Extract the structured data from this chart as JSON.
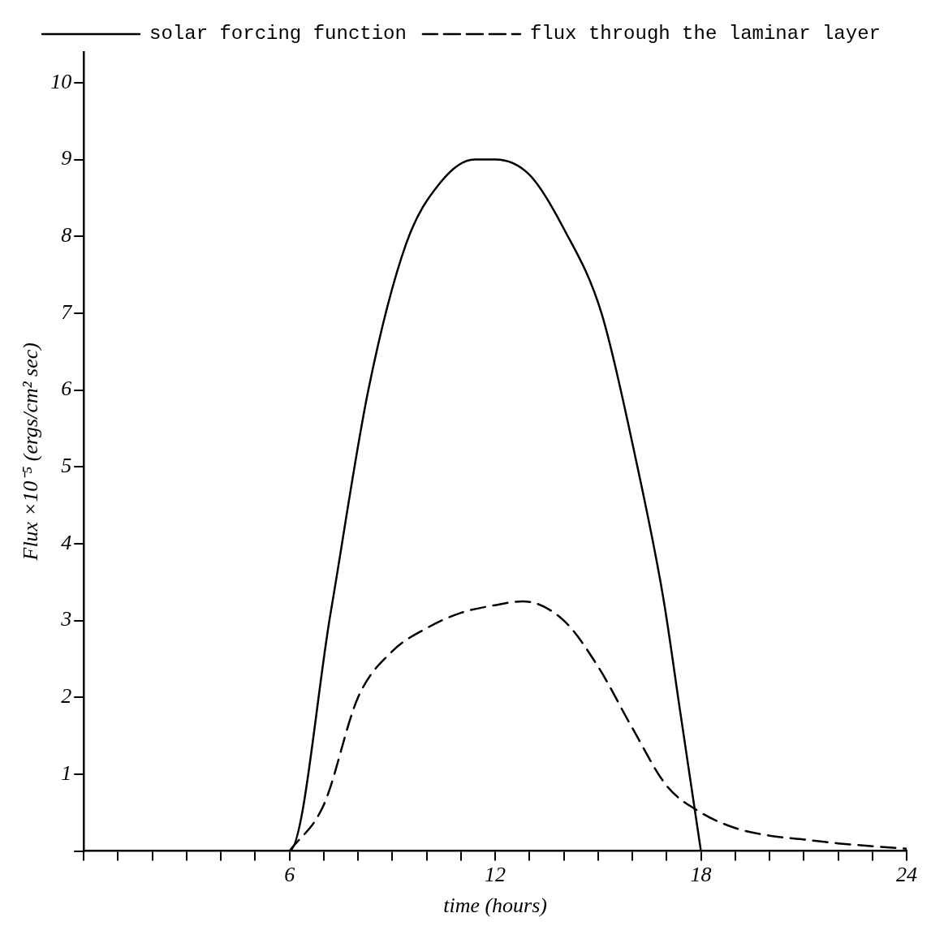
{
  "chart_data": {
    "type": "line",
    "xlabel": "time (hours)",
    "ylabel": "Flux ×10⁻⁵ (ergs/cm² sec)",
    "xlim": [
      0,
      24
    ],
    "ylim": [
      0,
      10.4
    ],
    "xticks": [
      {
        "value": 0,
        "label": null
      },
      {
        "value": 1,
        "label": null
      },
      {
        "value": 2,
        "label": null
      },
      {
        "value": 3,
        "label": null
      },
      {
        "value": 4,
        "label": null
      },
      {
        "value": 5,
        "label": null
      },
      6,
      {
        "value": 7,
        "label": null
      },
      {
        "value": 8,
        "label": null
      },
      {
        "value": 9,
        "label": null
      },
      {
        "value": 10,
        "label": null
      },
      {
        "value": 11,
        "label": null
      },
      12,
      {
        "value": 13,
        "label": null
      },
      {
        "value": 14,
        "label": null
      },
      {
        "value": 15,
        "label": null
      },
      {
        "value": 16,
        "label": null
      },
      {
        "value": 17,
        "label": null
      },
      18,
      {
        "value": 19,
        "label": null
      },
      {
        "value": 20,
        "label": null
      },
      {
        "value": 21,
        "label": null
      },
      {
        "value": 22,
        "label": null
      },
      {
        "value": 23,
        "label": null
      },
      24
    ],
    "yticks": [
      {
        "value": 0,
        "label": null
      },
      1,
      2,
      3,
      4,
      5,
      6,
      7,
      8,
      9,
      10
    ],
    "grid": false,
    "legend": "top",
    "marker": "none",
    "series": [
      {
        "name": "solar forcing function",
        "color": "#000000",
        "line_style": "solid",
        "x": [
          0,
          6,
          7.2,
          8.3,
          9.4,
          10.4,
          11.4,
          12,
          13,
          14,
          15.1,
          16.1,
          16.9,
          17.4,
          18
        ],
        "values": [
          0,
          0,
          3.1,
          6.0,
          7.9,
          8.7,
          9.0,
          9.0,
          8.8,
          8.1,
          7.0,
          5.1,
          3.3,
          1.8,
          0
        ]
      },
      {
        "name": "flux through the laminar layer",
        "color": "#000000",
        "line_style": "dashed",
        "x": [
          6,
          7,
          8,
          9,
          10,
          11,
          12,
          12.8,
          14,
          15,
          16,
          17,
          18,
          19,
          20,
          21,
          22,
          24
        ],
        "values": [
          0,
          0.6,
          2.0,
          2.6,
          2.9,
          3.1,
          3.2,
          3.25,
          3.0,
          2.4,
          1.6,
          0.85,
          0.5,
          0.3,
          0.2,
          0.15,
          0.1,
          0.03
        ]
      }
    ]
  }
}
